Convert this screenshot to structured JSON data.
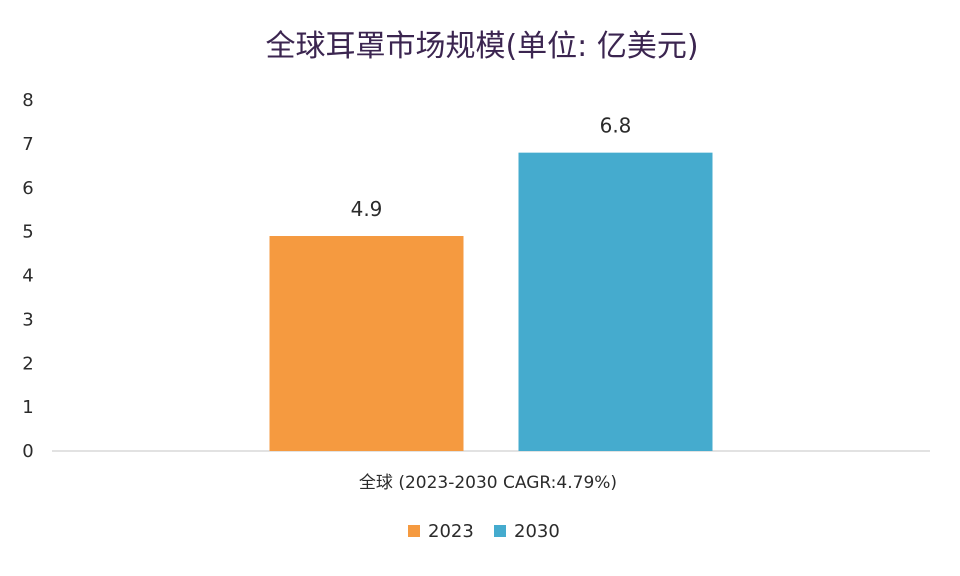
{
  "chart_data": {
    "type": "bar",
    "title": "全球耳罩市场规模(单位: 亿美元)",
    "categories": [
      "全球 (2023-2030 CAGR:4.79%)"
    ],
    "series": [
      {
        "name": "2023",
        "values": [
          4.9
        ],
        "color": "#F59A40"
      },
      {
        "name": "2030",
        "values": [
          6.8
        ],
        "color": "#45ABCE"
      }
    ],
    "ylim": [
      0,
      8
    ],
    "yticks": [
      "0",
      "1",
      "2",
      "3",
      "4",
      "5",
      "6",
      "7",
      "8"
    ],
    "data_labels": [
      "4.9",
      "6.8"
    ],
    "grid": false,
    "legend_position": "bottom"
  }
}
